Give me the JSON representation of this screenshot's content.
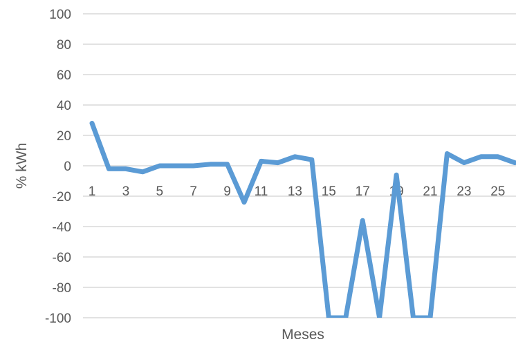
{
  "chart_data": {
    "type": "line",
    "title": "",
    "xlabel": "Meses",
    "ylabel": "% kWh",
    "ylim": [
      -100,
      100
    ],
    "y_ticks": [
      100,
      80,
      60,
      40,
      20,
      0,
      -20,
      -40,
      -60,
      -80,
      -100
    ],
    "x": [
      1,
      2,
      3,
      4,
      5,
      6,
      7,
      8,
      9,
      10,
      11,
      12,
      13,
      14,
      15,
      16,
      17,
      18,
      19,
      20,
      21,
      22,
      23,
      24,
      25,
      26
    ],
    "x_tick_labels": [
      "1",
      "3",
      "5",
      "7",
      "9",
      "11",
      "13",
      "15",
      "17",
      "19",
      "21",
      "23",
      "25"
    ],
    "series": [
      {
        "values": [
          28,
          -2,
          -2,
          -4,
          0,
          0,
          0,
          1,
          1,
          -24,
          3,
          2,
          6,
          4,
          -100,
          -100,
          -36,
          -100,
          -6,
          -100,
          -100,
          8,
          2,
          6,
          6,
          2
        ]
      }
    ],
    "grid": true,
    "line_color": "#5b9bd5"
  }
}
